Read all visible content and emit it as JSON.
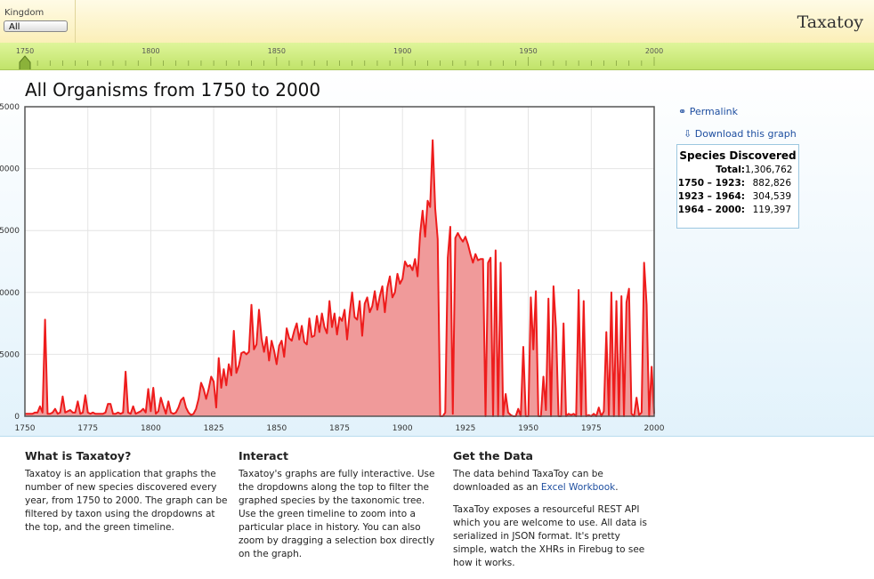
{
  "header": {
    "kingdom_label": "Kingdom",
    "kingdom_value": "All",
    "logo": "Taxatoy"
  },
  "timeline": {
    "ticks": [
      1750,
      1800,
      1850,
      1900,
      1950,
      2000
    ]
  },
  "chart_data": {
    "type": "area",
    "title": "All Organisms from 1750 to 2000",
    "x": [
      1750,
      1751,
      1752,
      1753,
      1754,
      1755,
      1756,
      1757,
      1758,
      1759,
      1760,
      1761,
      1762,
      1763,
      1764,
      1765,
      1766,
      1767,
      1768,
      1769,
      1770,
      1771,
      1772,
      1773,
      1774,
      1775,
      1776,
      1777,
      1778,
      1779,
      1780,
      1781,
      1782,
      1783,
      1784,
      1785,
      1786,
      1787,
      1788,
      1789,
      1790,
      1791,
      1792,
      1793,
      1794,
      1795,
      1796,
      1797,
      1798,
      1799,
      1800,
      1801,
      1802,
      1803,
      1804,
      1805,
      1806,
      1807,
      1808,
      1809,
      1810,
      1811,
      1812,
      1813,
      1814,
      1815,
      1816,
      1817,
      1818,
      1819,
      1820,
      1821,
      1822,
      1823,
      1824,
      1825,
      1826,
      1827,
      1828,
      1829,
      1830,
      1831,
      1832,
      1833,
      1834,
      1835,
      1836,
      1837,
      1838,
      1839,
      1840,
      1841,
      1842,
      1843,
      1844,
      1845,
      1846,
      1847,
      1848,
      1849,
      1850,
      1851,
      1852,
      1853,
      1854,
      1855,
      1856,
      1857,
      1858,
      1859,
      1860,
      1861,
      1862,
      1863,
      1864,
      1865,
      1866,
      1867,
      1868,
      1869,
      1870,
      1871,
      1872,
      1873,
      1874,
      1875,
      1876,
      1877,
      1878,
      1879,
      1880,
      1881,
      1882,
      1883,
      1884,
      1885,
      1886,
      1887,
      1888,
      1889,
      1890,
      1891,
      1892,
      1893,
      1894,
      1895,
      1896,
      1897,
      1898,
      1899,
      1900,
      1901,
      1902,
      1903,
      1904,
      1905,
      1906,
      1907,
      1908,
      1909,
      1910,
      1911,
      1912,
      1913,
      1914,
      1915,
      1916,
      1917,
      1918,
      1919,
      1920,
      1921,
      1922,
      1923,
      1924,
      1925,
      1926,
      1927,
      1928,
      1929,
      1930,
      1931,
      1932,
      1933,
      1934,
      1935,
      1936,
      1937,
      1938,
      1939,
      1940,
      1941,
      1942,
      1943,
      1944,
      1945,
      1946,
      1947,
      1948,
      1949,
      1950,
      1951,
      1952,
      1953,
      1954,
      1955,
      1956,
      1957,
      1958,
      1959,
      1960,
      1961,
      1962,
      1963,
      1964,
      1965,
      1966,
      1967,
      1968,
      1969,
      1970,
      1971,
      1972,
      1973,
      1974,
      1975,
      1976,
      1977,
      1978,
      1979,
      1980,
      1981,
      1982,
      1983,
      1984,
      1985,
      1986,
      1987,
      1988,
      1989,
      1990,
      1991,
      1992,
      1993,
      1994,
      1995,
      1996,
      1997,
      1998,
      1999,
      2000
    ],
    "values": [
      200,
      200,
      200,
      200,
      300,
      300,
      800,
      300,
      7800,
      200,
      200,
      300,
      600,
      200,
      300,
      1600,
      300,
      400,
      500,
      300,
      300,
      1200,
      200,
      300,
      1700,
      300,
      200,
      300,
      200,
      200,
      200,
      200,
      300,
      1000,
      1000,
      200,
      200,
      300,
      200,
      300,
      3600,
      300,
      200,
      800,
      200,
      300,
      400,
      600,
      300,
      2200,
      400,
      2300,
      200,
      400,
      1500,
      800,
      200,
      1200,
      300,
      200,
      300,
      700,
      1300,
      1500,
      700,
      300,
      100,
      200,
      600,
      1400,
      2700,
      2200,
      1400,
      2200,
      3200,
      2800,
      700,
      4700,
      2300,
      3800,
      2500,
      4200,
      3300,
      6900,
      3500,
      4100,
      5100,
      5200,
      5000,
      5200,
      9000,
      5400,
      5800,
      8600,
      6300,
      5200,
      6400,
      4500,
      6100,
      5300,
      4200,
      5700,
      6100,
      4800,
      7100,
      6300,
      6100,
      6900,
      7500,
      6200,
      7300,
      6000,
      5800,
      7900,
      6400,
      6500,
      8100,
      6800,
      8300,
      7200,
      6700,
      9300,
      7200,
      8300,
      6600,
      8000,
      7700,
      8600,
      6200,
      8300,
      10000,
      8000,
      7800,
      9300,
      6500,
      9100,
      9600,
      8400,
      8900,
      10100,
      8600,
      9700,
      10500,
      8400,
      10400,
      11300,
      9600,
      10000,
      11500,
      10700,
      11100,
      12500,
      12100,
      12200,
      11800,
      12700,
      11300,
      14700,
      16600,
      14500,
      17400,
      16900,
      22300,
      16800,
      14300,
      0,
      0,
      300,
      12800,
      15300,
      200,
      14400,
      14800,
      14400,
      14100,
      14500,
      13900,
      13100,
      12400,
      13100,
      12600,
      12700,
      12700,
      0,
      12400,
      12800,
      0,
      13400,
      0,
      12400,
      0,
      1800,
      300,
      100,
      0,
      0,
      600,
      0,
      5600,
      0,
      0,
      9600,
      5400,
      10100,
      0,
      0,
      3200,
      500,
      9500,
      0,
      10500,
      7100,
      0,
      0,
      7500,
      0,
      200,
      100,
      200,
      0,
      10200,
      0,
      9300,
      0,
      100,
      0,
      200,
      0,
      700,
      0,
      400,
      6800,
      100,
      10000,
      0,
      9300,
      0,
      9700,
      0,
      9200,
      10300,
      200,
      0,
      1500,
      100,
      300,
      12400,
      9000,
      0,
      4000,
      200
    ],
    "xlim": [
      1750,
      2000
    ],
    "ylim": [
      0,
      25000
    ],
    "xticks": [
      1750,
      1775,
      1800,
      1825,
      1850,
      1875,
      1900,
      1925,
      1950,
      1975,
      2000
    ],
    "yticks": [
      0,
      5000,
      10000,
      15000,
      20000,
      25000
    ],
    "color": "#ee1c1c",
    "fill": "#f09a9a",
    "grid": true
  },
  "sidebar": {
    "permalink": "Permalink",
    "download": "Download this graph",
    "box": {
      "title": "Species Discovered",
      "total_label": "Total:",
      "total": "1,306,762",
      "rows": [
        [
          "1750 – 1923:",
          "882,826"
        ],
        [
          "1923 – 1964:",
          "304,539"
        ],
        [
          "1964 – 2000:",
          "119,397"
        ]
      ]
    }
  },
  "footer": {
    "columns": [
      {
        "title": "What is Taxatoy?",
        "text": "Taxatoy is an application that graphs the number of new species discovered every year, from 1750 to 2000. The graph can be filtered by taxon using the dropdowns at the top, and the green timeline."
      },
      {
        "title": "Interact",
        "text": "Taxatoy's graphs are fully interactive. Use the dropdowns along the top to filter the graphed species by the taxonomic tree. Use the green timeline to zoom into a particular place in history. You can also zoom by dragging a selection box directly on the graph."
      },
      {
        "title": "Get the Data",
        "before": "The data behind TaxaToy can be downloaded as an ",
        "link": "Excel Workbook",
        "after": ".",
        "text2": "TaxaToy exposes a resourceful REST API which you are welcome to use. All data is serialized in JSON format. It's pretty simple, watch the XHRs in Firebug to see how it works."
      }
    ]
  }
}
